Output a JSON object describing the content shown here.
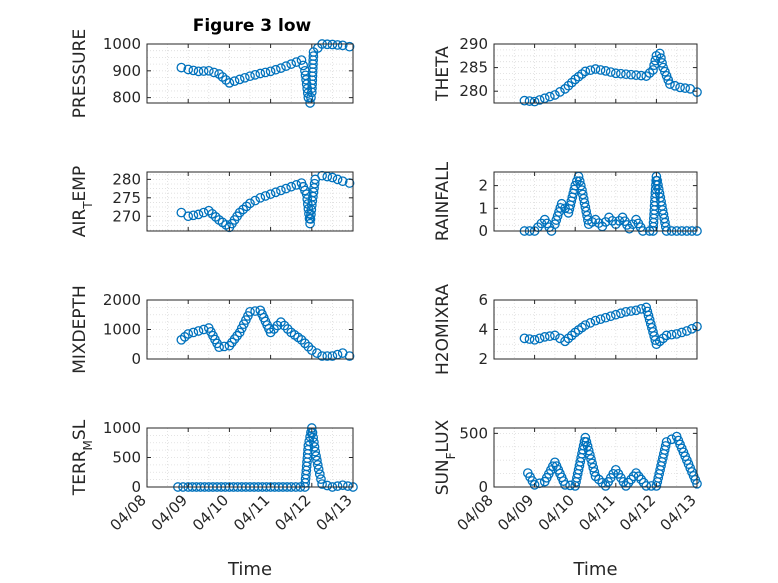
{
  "figure": {
    "title": "Figure 3 low",
    "x_label": "Time",
    "x_ticks": [
      "04/08",
      "04/09",
      "04/10",
      "04/11",
      "04/12",
      "04/13"
    ],
    "marker": "circle",
    "color": "#0072BD"
  },
  "chart_data": [
    {
      "type": "scatter",
      "ylabel": "PRESSURE",
      "ylim": [
        780,
        1000
      ],
      "yticks": [
        800,
        900,
        1000
      ],
      "xlim": [
        "04/08",
        "04/13"
      ],
      "grid": true,
      "x": [
        "04/08 20:00",
        "04/09 00:00",
        "04/09 06:00",
        "04/09 12:00",
        "04/09 18:00",
        "04/10 00:00",
        "04/10 06:00",
        "04/10 12:00",
        "04/10 18:00",
        "04/11 00:00",
        "04/11 06:00",
        "04/11 12:00",
        "04/11 18:00",
        "04/11 20:00",
        "04/11 21:00",
        "04/11 22:00",
        "04/11 23:00",
        "04/12 00:00",
        "04/12 01:00",
        "04/12 06:00",
        "04/12 12:00",
        "04/12 18:00",
        "04/12 22:00"
      ],
      "y": [
        912,
        905,
        898,
        900,
        888,
        855,
        868,
        880,
        890,
        898,
        910,
        925,
        940,
        900,
        850,
        800,
        780,
        820,
        970,
        1000,
        998,
        995,
        990
      ]
    },
    {
      "type": "scatter",
      "ylabel": "THETA",
      "ylim": [
        277.5,
        290
      ],
      "yticks": [
        280,
        285,
        290
      ],
      "xlim": [
        "04/08",
        "04/13"
      ],
      "grid": true,
      "x": [
        "04/08 18:00",
        "04/09 00:00",
        "04/09 06:00",
        "04/09 12:00",
        "04/09 18:00",
        "04/10 00:00",
        "04/10 06:00",
        "04/10 12:00",
        "04/10 18:00",
        "04/11 00:00",
        "04/11 06:00",
        "04/11 12:00",
        "04/11 18:00",
        "04/11 22:00",
        "04/12 00:00",
        "04/12 02:00",
        "04/12 04:00",
        "04/12 08:00",
        "04/12 14:00",
        "04/12 20:00",
        "04/13 00:00"
      ],
      "y": [
        278,
        277.8,
        278.5,
        279.2,
        280.5,
        282.5,
        284.2,
        284.7,
        284.3,
        283.8,
        283.6,
        283.4,
        283.2,
        284.5,
        287.5,
        288,
        285,
        281.5,
        280.8,
        280.5,
        279.8
      ]
    },
    {
      "type": "scatter",
      "ylabel": "AIR_TEMP",
      "ylim": [
        266,
        282
      ],
      "yticks": [
        270,
        275,
        280
      ],
      "xlim": [
        "04/08",
        "04/13"
      ],
      "grid": true,
      "x": [
        "04/08 20:00",
        "04/09 00:00",
        "04/09 06:00",
        "04/09 12:00",
        "04/09 18:00",
        "04/10 00:00",
        "04/10 06:00",
        "04/10 12:00",
        "04/10 18:00",
        "04/11 00:00",
        "04/11 06:00",
        "04/11 12:00",
        "04/11 18:00",
        "04/11 21:00",
        "04/11 22:00",
        "04/11 23:00",
        "04/12 00:00",
        "04/12 02:00",
        "04/12 06:00",
        "04/12 12:00",
        "04/12 18:00",
        "04/12 22:00"
      ],
      "y": [
        271,
        270,
        270.5,
        271.5,
        269,
        267,
        271,
        273.5,
        275,
        276,
        277,
        278,
        279,
        276,
        272,
        268,
        273,
        280,
        281,
        280.5,
        279.5,
        279
      ]
    },
    {
      "type": "scatter",
      "ylabel": "RAINFALL",
      "ylim": [
        0,
        2.6
      ],
      "yticks": [
        0,
        1,
        2
      ],
      "xlim": [
        "04/08",
        "04/13"
      ],
      "grid": true,
      "x": [
        "04/08 18:00",
        "04/09 00:00",
        "04/09 06:00",
        "04/09 10:00",
        "04/09 12:00",
        "04/09 16:00",
        "04/09 20:00",
        "04/10 00:00",
        "04/10 02:00",
        "04/10 04:00",
        "04/10 08:00",
        "04/10 12:00",
        "04/10 16:00",
        "04/10 20:00",
        "04/11 00:00",
        "04/11 04:00",
        "04/11 08:00",
        "04/11 12:00",
        "04/11 16:00",
        "04/11 20:00",
        "04/11 22:00",
        "04/12 00:00",
        "04/12 06:00",
        "04/12 12:00",
        "04/12 18:00",
        "04/13 00:00"
      ],
      "y": [
        0,
        0,
        0.5,
        0,
        0.3,
        1.2,
        0.8,
        2.0,
        2.4,
        1.8,
        0.3,
        0.5,
        0.2,
        0.6,
        0.3,
        0.6,
        0.1,
        0.5,
        0,
        0,
        0,
        2.4,
        0,
        0,
        0,
        0
      ]
    },
    {
      "type": "scatter",
      "ylabel": "MIXDEPTH",
      "ylim": [
        0,
        2000
      ],
      "yticks": [
        0,
        1000,
        2000
      ],
      "xlim": [
        "04/08",
        "04/13"
      ],
      "grid": true,
      "x": [
        "04/08 20:00",
        "04/09 00:00",
        "04/09 06:00",
        "04/09 12:00",
        "04/09 18:00",
        "04/10 00:00",
        "04/10 06:00",
        "04/10 12:00",
        "04/10 18:00",
        "04/11 00:00",
        "04/11 06:00",
        "04/11 12:00",
        "04/11 18:00",
        "04/12 00:00",
        "04/12 06:00",
        "04/12 12:00",
        "04/12 18:00",
        "04/12 22:00"
      ],
      "y": [
        650,
        850,
        950,
        1050,
        400,
        450,
        900,
        1600,
        1650,
        900,
        1250,
        900,
        650,
        300,
        100,
        100,
        200,
        100
      ]
    },
    {
      "type": "scatter",
      "ylabel": "H2OMIXRA",
      "ylim": [
        2,
        6
      ],
      "yticks": [
        2,
        4,
        6
      ],
      "xlim": [
        "04/08",
        "04/13"
      ],
      "grid": true,
      "x": [
        "04/08 18:00",
        "04/09 00:00",
        "04/09 06:00",
        "04/09 12:00",
        "04/09 18:00",
        "04/10 00:00",
        "04/10 06:00",
        "04/10 12:00",
        "04/10 18:00",
        "04/11 00:00",
        "04/11 06:00",
        "04/11 12:00",
        "04/11 18:00",
        "04/12 00:00",
        "04/12 06:00",
        "04/12 12:00",
        "04/12 18:00",
        "04/13 00:00"
      ],
      "y": [
        3.4,
        3.3,
        3.5,
        3.6,
        3.2,
        3.8,
        4.3,
        4.6,
        4.8,
        5.0,
        5.2,
        5.3,
        5.5,
        3.0,
        3.6,
        3.7,
        3.9,
        4.2
      ]
    },
    {
      "type": "scatter",
      "ylabel": "TERR_MSL",
      "ylim": [
        0,
        1000
      ],
      "yticks": [
        0,
        500,
        1000
      ],
      "xlim": [
        "04/08",
        "04/13"
      ],
      "grid": true,
      "x": [
        "04/08 18:00",
        "04/09 00:00",
        "04/09 12:00",
        "04/10 00:00",
        "04/10 12:00",
        "04/11 00:00",
        "04/11 12:00",
        "04/11 20:00",
        "04/11 22:00",
        "04/12 00:00",
        "04/12 02:00",
        "04/12 04:00",
        "04/12 06:00",
        "04/12 12:00",
        "04/12 18:00",
        "04/13 00:00"
      ],
      "y": [
        0,
        0,
        0,
        0,
        0,
        0,
        0,
        0,
        700,
        1000,
        600,
        300,
        50,
        0,
        30,
        0
      ]
    },
    {
      "type": "scatter",
      "ylabel": "SUN_FLUX",
      "ylim": [
        0,
        550
      ],
      "yticks": [
        0,
        500
      ],
      "xlim": [
        "04/08",
        "04/13"
      ],
      "grid": true,
      "x": [
        "04/08 20:00",
        "04/09 00:00",
        "04/09 06:00",
        "04/09 12:00",
        "04/09 18:00",
        "04/10 00:00",
        "04/10 06:00",
        "04/10 12:00",
        "04/10 18:00",
        "04/11 00:00",
        "04/11 06:00",
        "04/11 12:00",
        "04/11 18:00",
        "04/12 00:00",
        "04/12 06:00",
        "04/12 12:00",
        "04/12 18:00",
        "04/13 00:00"
      ],
      "y": [
        130,
        20,
        50,
        230,
        20,
        10,
        460,
        100,
        10,
        160,
        10,
        130,
        10,
        10,
        420,
        470,
        250,
        30
      ]
    }
  ]
}
